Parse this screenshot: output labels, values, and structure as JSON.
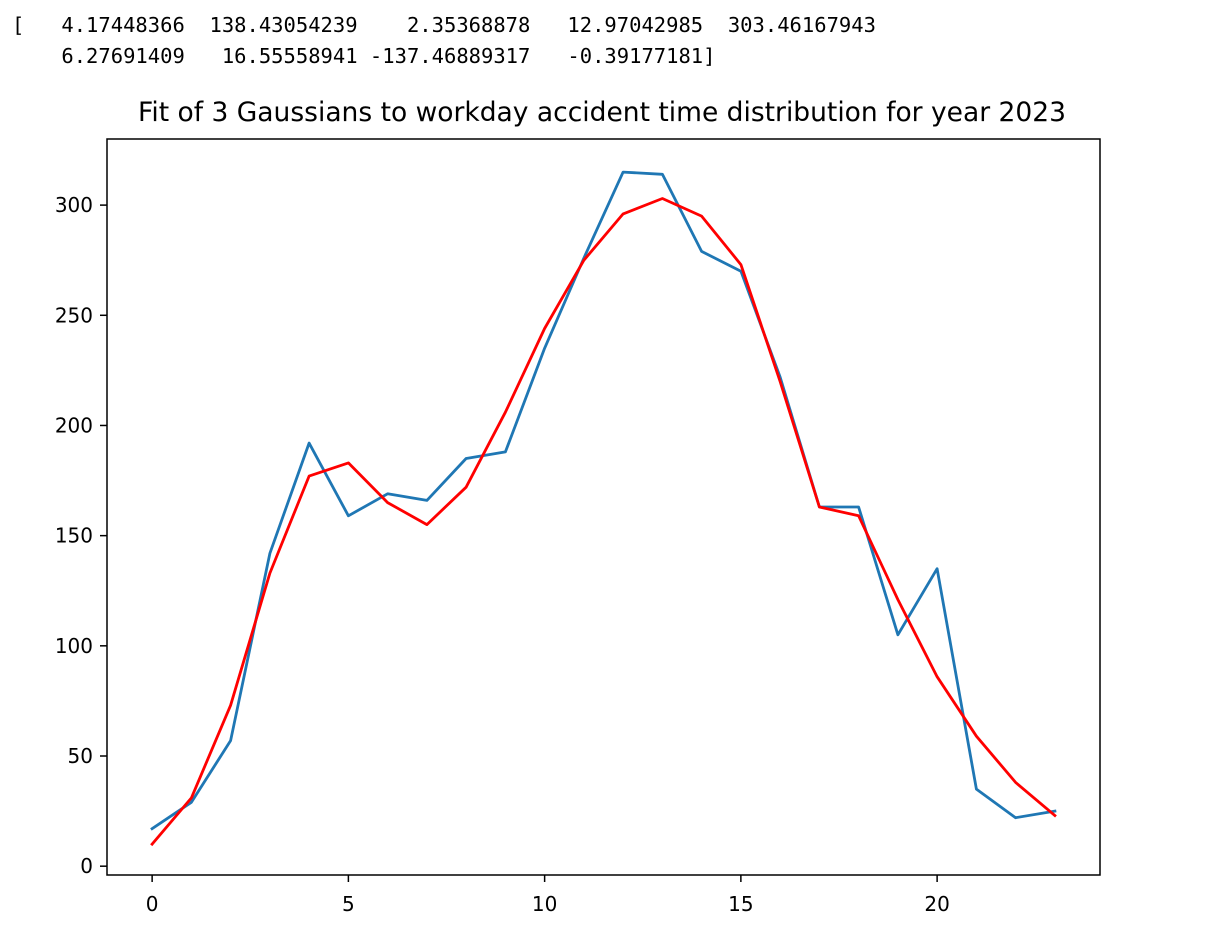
{
  "output": {
    "line1": "[   4.17448366  138.43054239    2.35368878   12.97042985  303.46167943",
    "line2": "    6.27691409   16.55558941 -137.46889317   -0.39177181]"
  },
  "chart_data": {
    "type": "line",
    "title": "Fit of 3 Gaussians to workday accident time distribution for year 2023",
    "xlabel": "",
    "ylabel": "",
    "xlim": [
      -1.15,
      24.15
    ],
    "ylim": [
      -4,
      330
    ],
    "x_ticks": [
      0,
      5,
      10,
      15,
      20
    ],
    "y_ticks": [
      0,
      50,
      100,
      150,
      200,
      250,
      300
    ],
    "grid": false,
    "legend": "none",
    "x": [
      0,
      1,
      2,
      3,
      4,
      5,
      6,
      7,
      8,
      9,
      10,
      11,
      12,
      13,
      14,
      15,
      16,
      17,
      18,
      19,
      20,
      21,
      22,
      23
    ],
    "series": [
      {
        "color": "#1f77b4",
        "values": [
          17,
          29,
          57,
          142,
          192,
          159,
          169,
          166,
          185,
          188,
          235,
          276,
          315,
          314,
          279,
          270,
          222,
          163,
          163,
          105,
          135,
          35,
          22,
          25
        ]
      },
      {
        "color": "#ff0000",
        "values": [
          10,
          31,
          73,
          133,
          177,
          183,
          165,
          155,
          172,
          206,
          244,
          275,
          296,
          303,
          295,
          273,
          220,
          163,
          159,
          121,
          86,
          59,
          38,
          23
        ]
      }
    ]
  }
}
